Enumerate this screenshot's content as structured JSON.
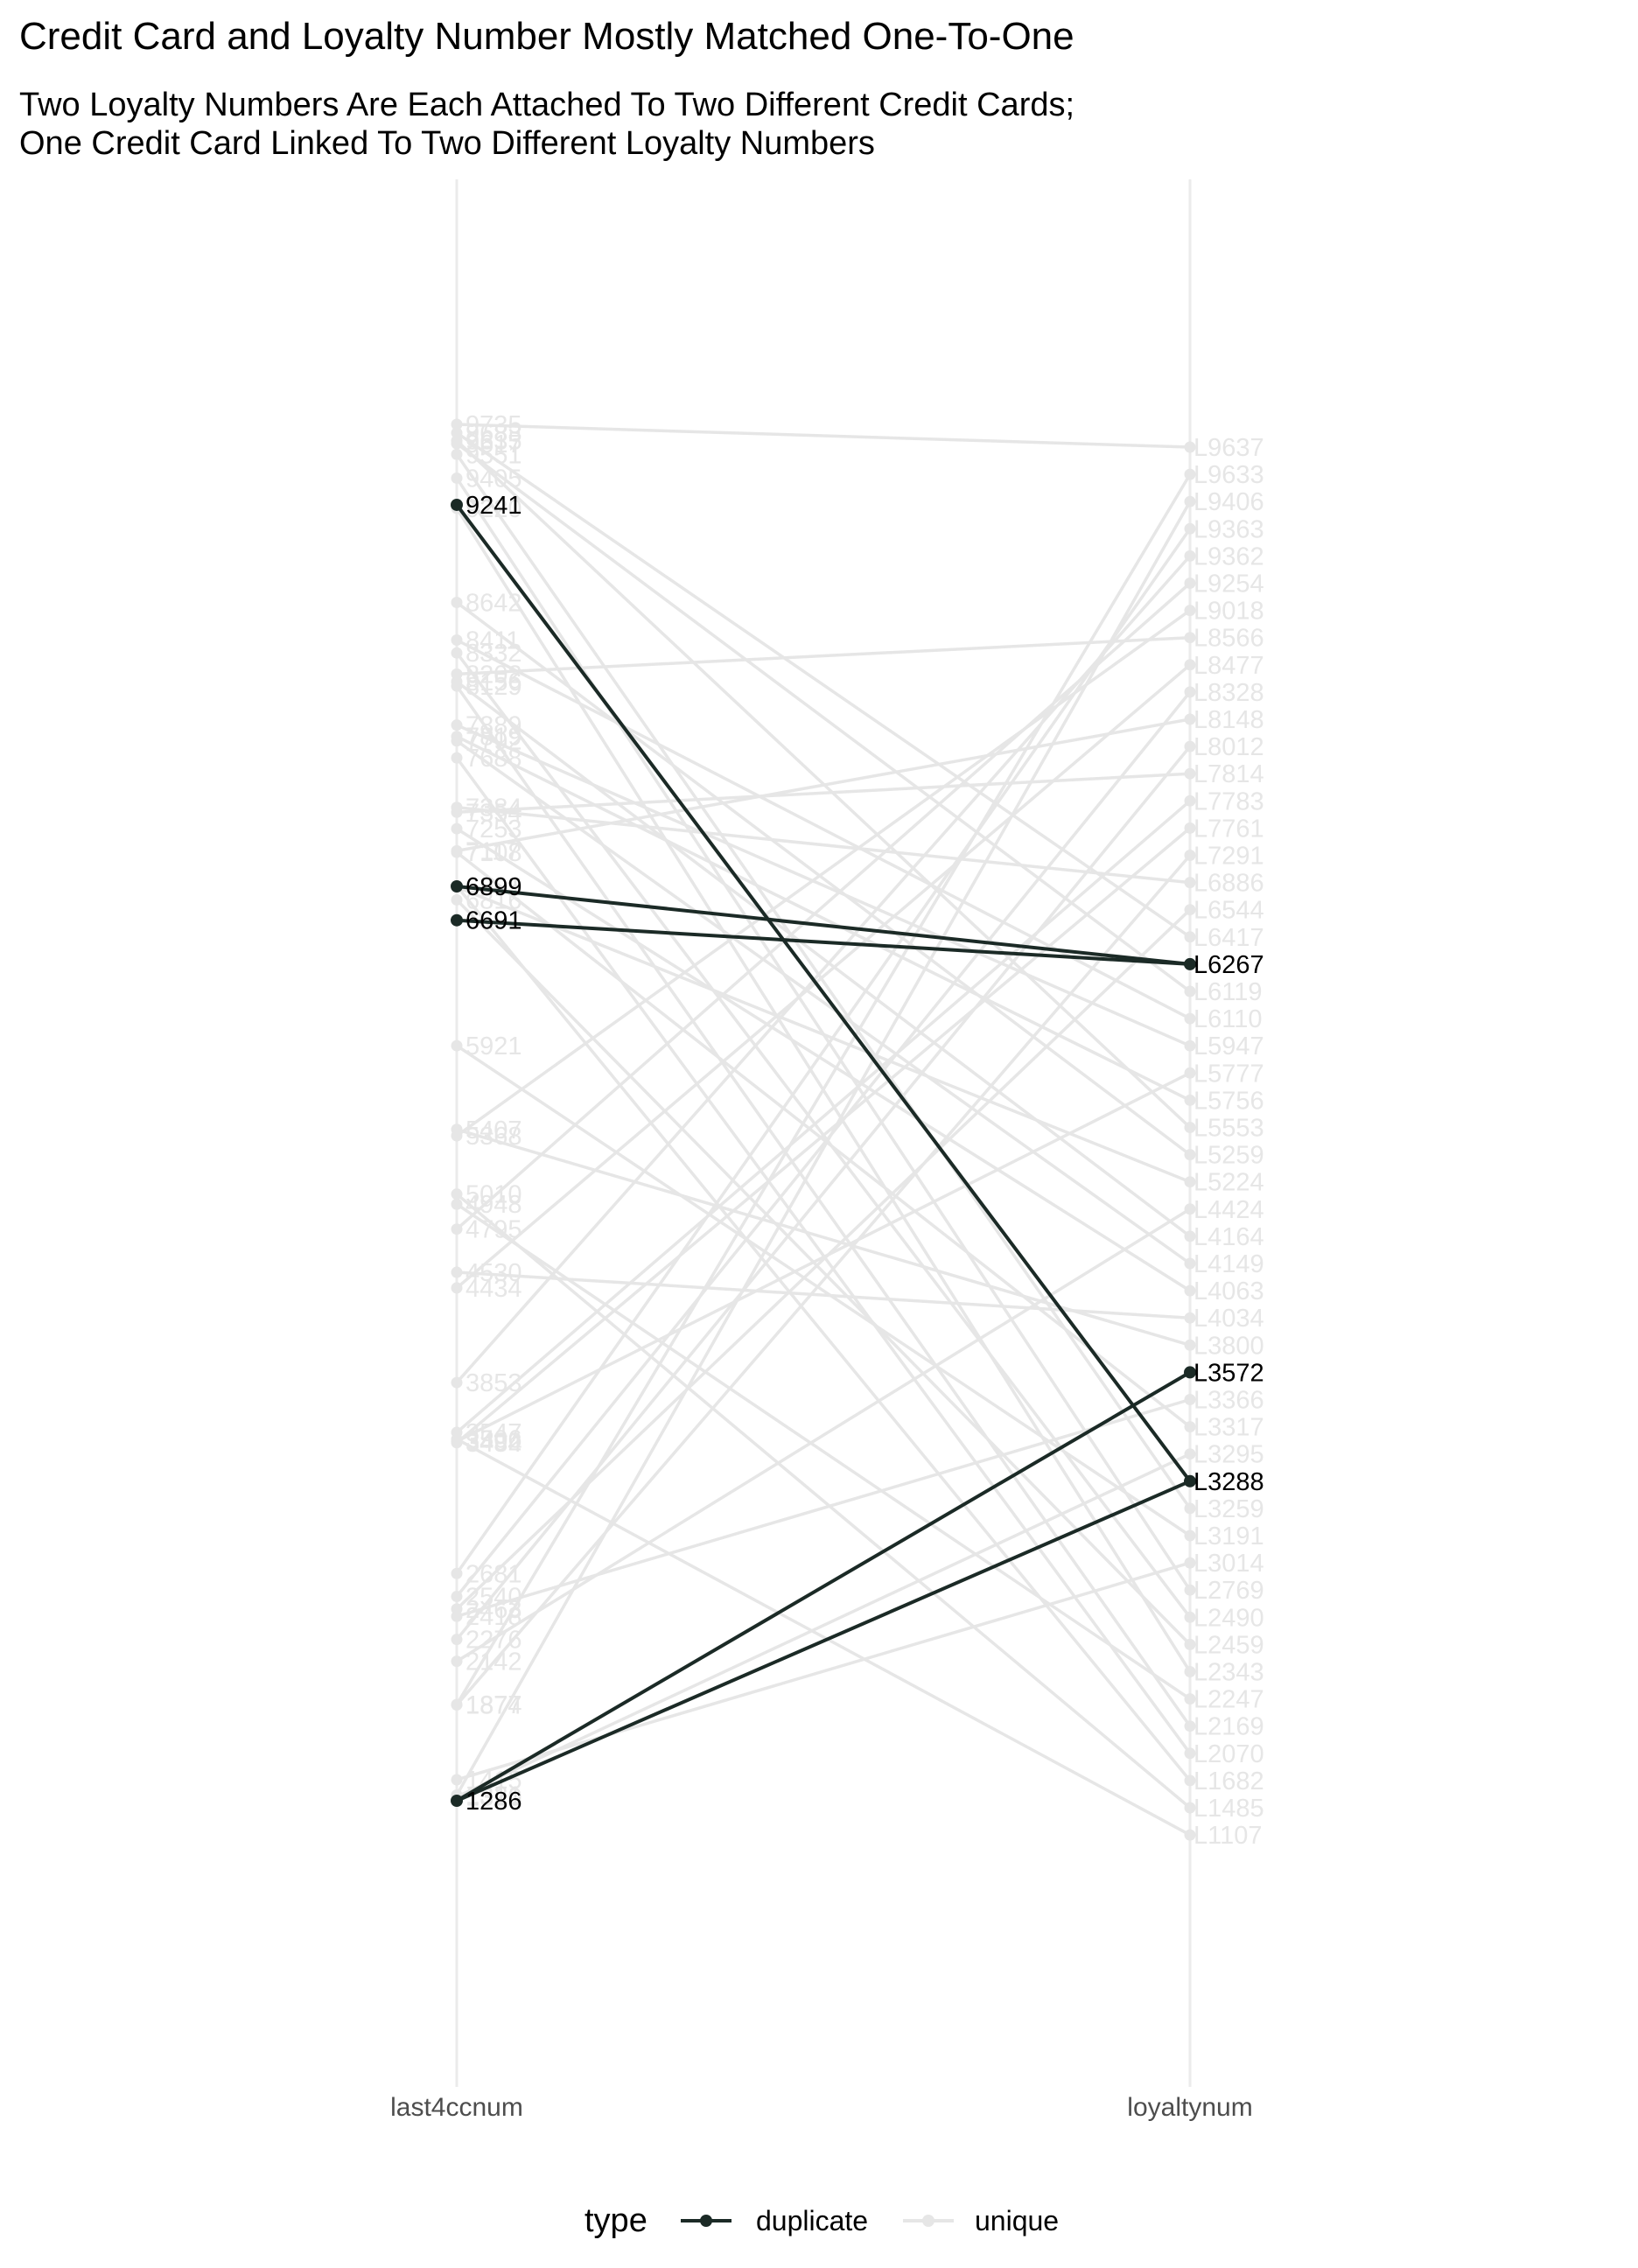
{
  "chart_data": {
    "type": "slope",
    "title": "Credit Card and Loyalty Number Mostly Matched One-To-One",
    "subtitle": [
      "Two Loyalty Numbers Are Each Attached To Two Different Credit Cards;",
      "One Credit Card Linked To Two Different Loyalty Numbers"
    ],
    "axes": [
      "last4ccnum",
      "loyaltynum"
    ],
    "legend": {
      "title": "type",
      "position": "bottom",
      "entries": [
        "duplicate",
        "unique"
      ]
    },
    "colors": {
      "duplicate": "#1b2a26",
      "unique": "#e6e6e6",
      "axis_line": "#ebebeb",
      "tick_text": "#4d4d4d"
    },
    "last4ccnum": [
      "9735",
      "9683",
      "9635",
      "9617",
      "9551",
      "9405",
      "9241",
      "9220",
      "8642",
      "8411",
      "8332",
      "8202",
      "8156",
      "8129",
      "7889",
      "7819",
      "7792",
      "7688",
      "7384",
      "7354",
      "7253",
      "7117",
      "7108",
      "6901",
      "6899",
      "6895",
      "6816",
      "6691",
      "5921",
      "5407",
      "5368",
      "5010",
      "4948",
      "4795",
      "4530",
      "4434",
      "3853",
      "3547",
      "3506",
      "3492",
      "3484",
      "2681",
      "2540",
      "2463",
      "2418",
      "2276",
      "2142",
      "1877",
      "1874",
      "1415",
      "1321",
      "1310",
      "1286"
    ],
    "loyaltynum": [
      "L9637",
      "L9633",
      "L9406",
      "L9363",
      "L9362",
      "L9254",
      "L9018",
      "L8566",
      "L8477",
      "L8328",
      "L8148",
      "L8012",
      "L7814",
      "L7783",
      "L7761",
      "L7291",
      "L6886",
      "L6544",
      "L6417",
      "L6267",
      "L6119",
      "L6110",
      "L5947",
      "L5777",
      "L5756",
      "L5553",
      "L5259",
      "L5224",
      "L4424",
      "L4164",
      "L4149",
      "L4063",
      "L4034",
      "L3800",
      "L3572",
      "L3366",
      "L3317",
      "L3295",
      "L3288",
      "L3259",
      "L3191",
      "L3014",
      "L2769",
      "L2490",
      "L2459",
      "L2343",
      "L2247",
      "L2169",
      "L2070",
      "L1682",
      "L1485",
      "L1107"
    ],
    "links": [
      {
        "from": "9241",
        "to": "L3288",
        "type": "duplicate"
      },
      {
        "from": "6899",
        "to": "L6267",
        "type": "duplicate"
      },
      {
        "from": "6691",
        "to": "L6267",
        "type": "duplicate"
      },
      {
        "from": "1286",
        "to": "L3572",
        "type": "duplicate"
      },
      {
        "from": "1286",
        "to": "L3288",
        "type": "duplicate"
      },
      {
        "from": "9735",
        "to": "L9637",
        "type": "unique"
      },
      {
        "from": "9683",
        "to": "L6417",
        "type": "unique"
      },
      {
        "from": "9635",
        "to": "L5553",
        "type": "unique"
      },
      {
        "from": "9617",
        "to": "L6119",
        "type": "unique"
      },
      {
        "from": "9551",
        "to": "L3259",
        "type": "unique"
      },
      {
        "from": "9405",
        "to": "L2769",
        "type": "unique"
      },
      {
        "from": "9220",
        "to": "L2343",
        "type": "unique"
      },
      {
        "from": "8642",
        "to": "L5259",
        "type": "unique"
      },
      {
        "from": "8411",
        "to": "L6110",
        "type": "unique"
      },
      {
        "from": "8332",
        "to": "L2490",
        "type": "unique"
      },
      {
        "from": "8202",
        "to": "L8566",
        "type": "unique"
      },
      {
        "from": "8156",
        "to": "L4164",
        "type": "unique"
      },
      {
        "from": "8129",
        "to": "L2169",
        "type": "unique"
      },
      {
        "from": "7889",
        "to": "L5947",
        "type": "unique"
      },
      {
        "from": "7819",
        "to": "L5756",
        "type": "unique"
      },
      {
        "from": "7792",
        "to": "L4149",
        "type": "unique"
      },
      {
        "from": "7688",
        "to": "L2070",
        "type": "unique"
      },
      {
        "from": "7384",
        "to": "L6886",
        "type": "unique"
      },
      {
        "from": "7354",
        "to": "L7814",
        "type": "unique"
      },
      {
        "from": "7253",
        "to": "L4063",
        "type": "unique"
      },
      {
        "from": "7117",
        "to": "L8148",
        "type": "unique"
      },
      {
        "from": "7108",
        "to": "L3317",
        "type": "unique"
      },
      {
        "from": "6901",
        "to": "L1682",
        "type": "unique"
      },
      {
        "from": "6895",
        "to": "L5224",
        "type": "unique"
      },
      {
        "from": "6816",
        "to": "L2459",
        "type": "unique"
      },
      {
        "from": "5921",
        "to": "L3191",
        "type": "unique"
      },
      {
        "from": "5407",
        "to": "L3800",
        "type": "unique"
      },
      {
        "from": "5368",
        "to": "L9018",
        "type": "unique"
      },
      {
        "from": "5010",
        "to": "L1485",
        "type": "unique"
      },
      {
        "from": "4948",
        "to": "L2247",
        "type": "unique"
      },
      {
        "from": "4795",
        "to": "L9254",
        "type": "unique"
      },
      {
        "from": "4530",
        "to": "L4034",
        "type": "unique"
      },
      {
        "from": "4434",
        "to": "L8477",
        "type": "unique"
      },
      {
        "from": "3853",
        "to": "L9362",
        "type": "unique"
      },
      {
        "from": "3547",
        "to": "L7783",
        "type": "unique"
      },
      {
        "from": "3506",
        "to": "L1107",
        "type": "unique"
      },
      {
        "from": "3492",
        "to": "L5777",
        "type": "unique"
      },
      {
        "from": "3484",
        "to": "L7761",
        "type": "unique"
      },
      {
        "from": "2681",
        "to": "L9363",
        "type": "unique"
      },
      {
        "from": "2540",
        "to": "L8328",
        "type": "unique"
      },
      {
        "from": "2463",
        "to": "L6544",
        "type": "unique"
      },
      {
        "from": "2418",
        "to": "L3366",
        "type": "unique"
      },
      {
        "from": "2276",
        "to": "L8012",
        "type": "unique"
      },
      {
        "from": "2142",
        "to": "L4424",
        "type": "unique"
      },
      {
        "from": "1877",
        "to": "L9633",
        "type": "unique"
      },
      {
        "from": "1874",
        "to": "L7291",
        "type": "unique"
      },
      {
        "from": "1415",
        "to": "L3014",
        "type": "unique"
      },
      {
        "from": "1321",
        "to": "L9406",
        "type": "unique"
      },
      {
        "from": "1310",
        "to": "L3295",
        "type": "unique"
      }
    ]
  }
}
